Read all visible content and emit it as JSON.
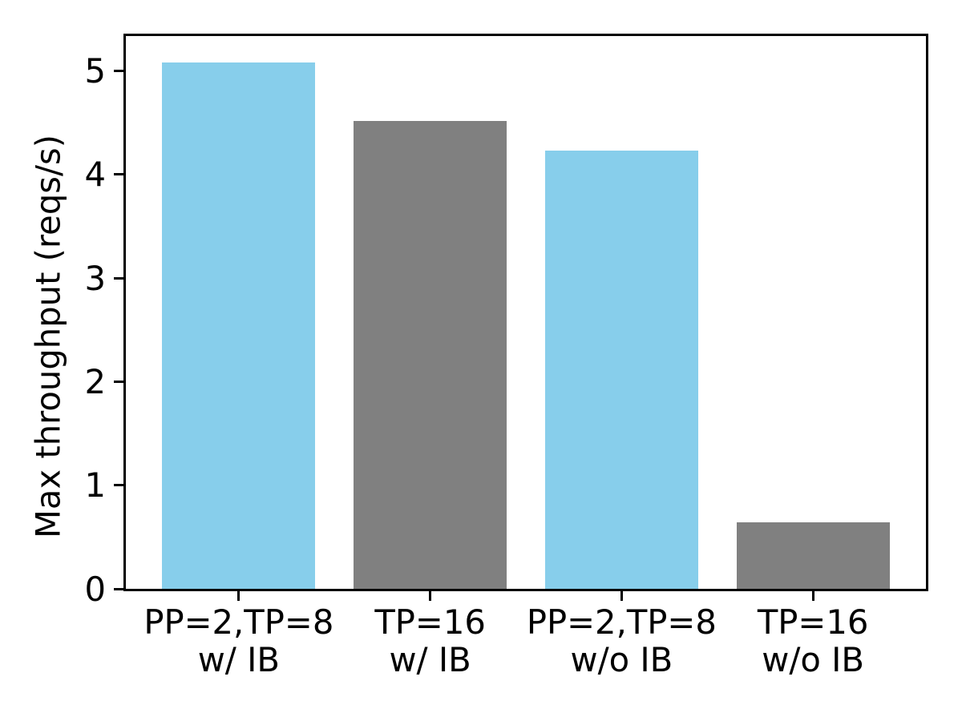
{
  "chart_data": {
    "type": "bar",
    "title": "",
    "xlabel": "",
    "ylabel": "Max throughput (reqs/s)",
    "categories": [
      [
        "PP=2,TP=8",
        "w/ IB"
      ],
      [
        "TP=16",
        "w/ IB"
      ],
      [
        "PP=2,TP=8",
        "w/o IB"
      ],
      [
        "TP=16",
        "w/o IB"
      ]
    ],
    "values": [
      5.08,
      4.52,
      4.23,
      0.64
    ],
    "bar_colors": [
      "#87CEEB",
      "#808080",
      "#87CEEB",
      "#808080"
    ],
    "yticks": [
      0,
      1,
      2,
      3,
      4,
      5
    ],
    "ylim": [
      0,
      5.336
    ],
    "grid": false,
    "legend": "none",
    "colors": {
      "bar_blue": "#87CEEB",
      "bar_gray": "#808080",
      "axis": "#000000",
      "background": "#FFFFFF"
    }
  }
}
